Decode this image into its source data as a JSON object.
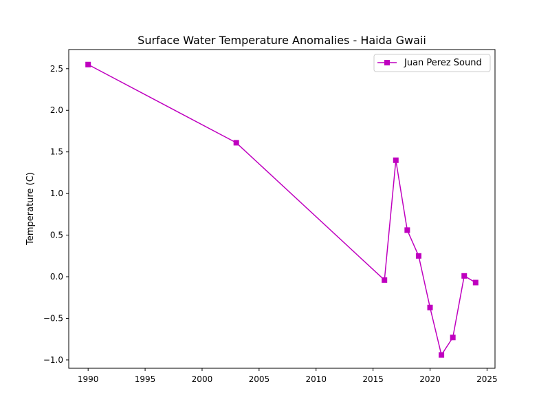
{
  "chart_data": {
    "type": "line",
    "title": "Surface Water Temperature Anomalies - Haida Gwaii",
    "xlabel": "",
    "ylabel": "Temperature (C)",
    "xlim": [
      1988.3,
      2025.7
    ],
    "ylim": [
      -1.1,
      2.73
    ],
    "x_ticks": [
      1990,
      1995,
      2000,
      2005,
      2010,
      2015,
      2020,
      2025
    ],
    "y_ticks": [
      -1.0,
      -0.5,
      0.0,
      0.5,
      1.0,
      1.5,
      2.0,
      2.5
    ],
    "x_tick_labels": [
      "1990",
      "1995",
      "2000",
      "2005",
      "2010",
      "2015",
      "2020",
      "2025"
    ],
    "y_tick_labels": [
      "−1.0",
      "−0.5",
      "0.0",
      "0.5",
      "1.0",
      "1.5",
      "2.0",
      "2.5"
    ],
    "grid": false,
    "legend_position": "top-right",
    "series": [
      {
        "name": "Juan Perez Sound",
        "color": "#bf00bf",
        "marker": "square",
        "x": [
          1990,
          2003,
          2016,
          2017,
          2018,
          2019,
          2020,
          2021,
          2022,
          2023,
          2024
        ],
        "y": [
          2.55,
          1.61,
          -0.04,
          1.4,
          0.56,
          0.25,
          -0.37,
          -0.94,
          -0.73,
          0.01,
          -0.07
        ]
      }
    ]
  }
}
